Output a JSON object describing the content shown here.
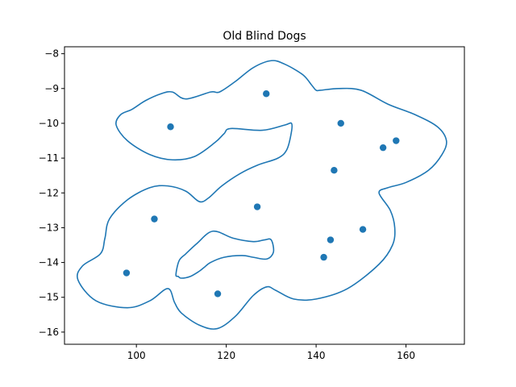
{
  "chart_data": {
    "type": "scatter",
    "title": "Old Blind Dogs",
    "xlabel": "",
    "ylabel": "",
    "xlim": [
      84,
      173
    ],
    "ylim": [
      -16.35,
      -7.8
    ],
    "xticks": [
      100,
      120,
      140,
      160
    ],
    "yticks": [
      -8,
      -9,
      -10,
      -11,
      -12,
      -13,
      -14,
      -15,
      -16
    ],
    "grid": false,
    "colors": {
      "series": "#1f77b4",
      "axes": "#000000",
      "background": "#ffffff"
    },
    "points": {
      "x": [
        107.6,
        128.9,
        145.5,
        157.8,
        154.9,
        144.0,
        126.9,
        150.4,
        104.0,
        143.2,
        141.7,
        97.8,
        118.1
      ],
      "y": [
        -10.1,
        -9.15,
        -10.0,
        -10.5,
        -10.7,
        -11.35,
        -12.4,
        -13.05,
        -12.75,
        -13.35,
        -13.85,
        -14.3,
        -14.9
      ]
    },
    "contour": {
      "closed": true,
      "x": [
        111.0,
        116.5,
        118.5,
        122.0,
        126.0,
        130.0,
        133.0,
        137.0,
        139.0,
        140.0,
        141.0,
        145.0,
        150.0,
        156.0,
        162.0,
        167.0,
        169.0,
        168.0,
        165.0,
        160.0,
        156.0,
        154.0,
        156.5,
        157.5,
        157.0,
        154.0,
        147.0,
        140.0,
        135.0,
        131.0,
        129.0,
        126.0,
        122.0,
        118.0,
        114.0,
        110.0,
        108.5,
        107.0,
        103.0,
        98.0,
        91.0,
        87.0,
        88.0,
        92.0,
        93.0,
        94.0,
        98.0,
        103.0,
        107.0,
        111.0,
        114.0,
        116.0,
        119.0,
        123.0,
        127.0,
        131.5,
        133.5,
        134.5,
        134.5,
        133.0,
        128.0,
        121.0,
        119.5,
        117.5,
        113.0,
        108.0,
        103.0,
        98.0,
        95.5,
        96.5,
        99.0,
        102.0,
        105.5,
        108.0
      ],
      "y": [
        -9.3,
        -9.1,
        -9.1,
        -8.8,
        -8.4,
        -8.2,
        -8.3,
        -8.6,
        -8.9,
        -9.05,
        -9.05,
        -9.0,
        -9.05,
        -9.45,
        -9.75,
        -10.1,
        -10.5,
        -10.9,
        -11.35,
        -11.7,
        -11.85,
        -12.0,
        -12.5,
        -13.0,
        -13.5,
        -14.05,
        -14.75,
        -15.05,
        -15.05,
        -14.8,
        -14.7,
        -14.95,
        -15.55,
        -15.9,
        -15.8,
        -15.45,
        -15.15,
        -14.75,
        -15.1,
        -15.3,
        -15.1,
        -14.5,
        -14.1,
        -13.75,
        -13.3,
        -12.75,
        -12.2,
        -11.85,
        -11.8,
        -11.95,
        -12.25,
        -12.15,
        -11.8,
        -11.45,
        -11.2,
        -11.0,
        -10.75,
        -10.25,
        -10.0,
        -10.05,
        -10.2,
        -10.15,
        -10.3,
        -10.55,
        -10.95,
        -11.05,
        -10.9,
        -10.5,
        -10.05,
        -9.75,
        -9.6,
        -9.35,
        -9.15,
        -9.1
      ]
    },
    "hole": {
      "closed": true,
      "x": [
        109.3,
        108.8,
        109.5,
        111.0,
        113.5,
        117.0,
        121.5,
        126.0,
        128.5,
        130.0,
        130.5,
        129.0,
        126.0,
        123.5,
        119.5,
        116.5,
        115.0,
        114.0,
        112.0,
        110.0
      ],
      "y": [
        -14.4,
        -14.35,
        -13.95,
        -13.75,
        -13.45,
        -13.1,
        -13.3,
        -13.4,
        -13.35,
        -13.35,
        -13.7,
        -13.9,
        -13.85,
        -13.8,
        -13.85,
        -14.0,
        -14.15,
        -14.25,
        -14.4,
        -14.45
      ]
    }
  }
}
